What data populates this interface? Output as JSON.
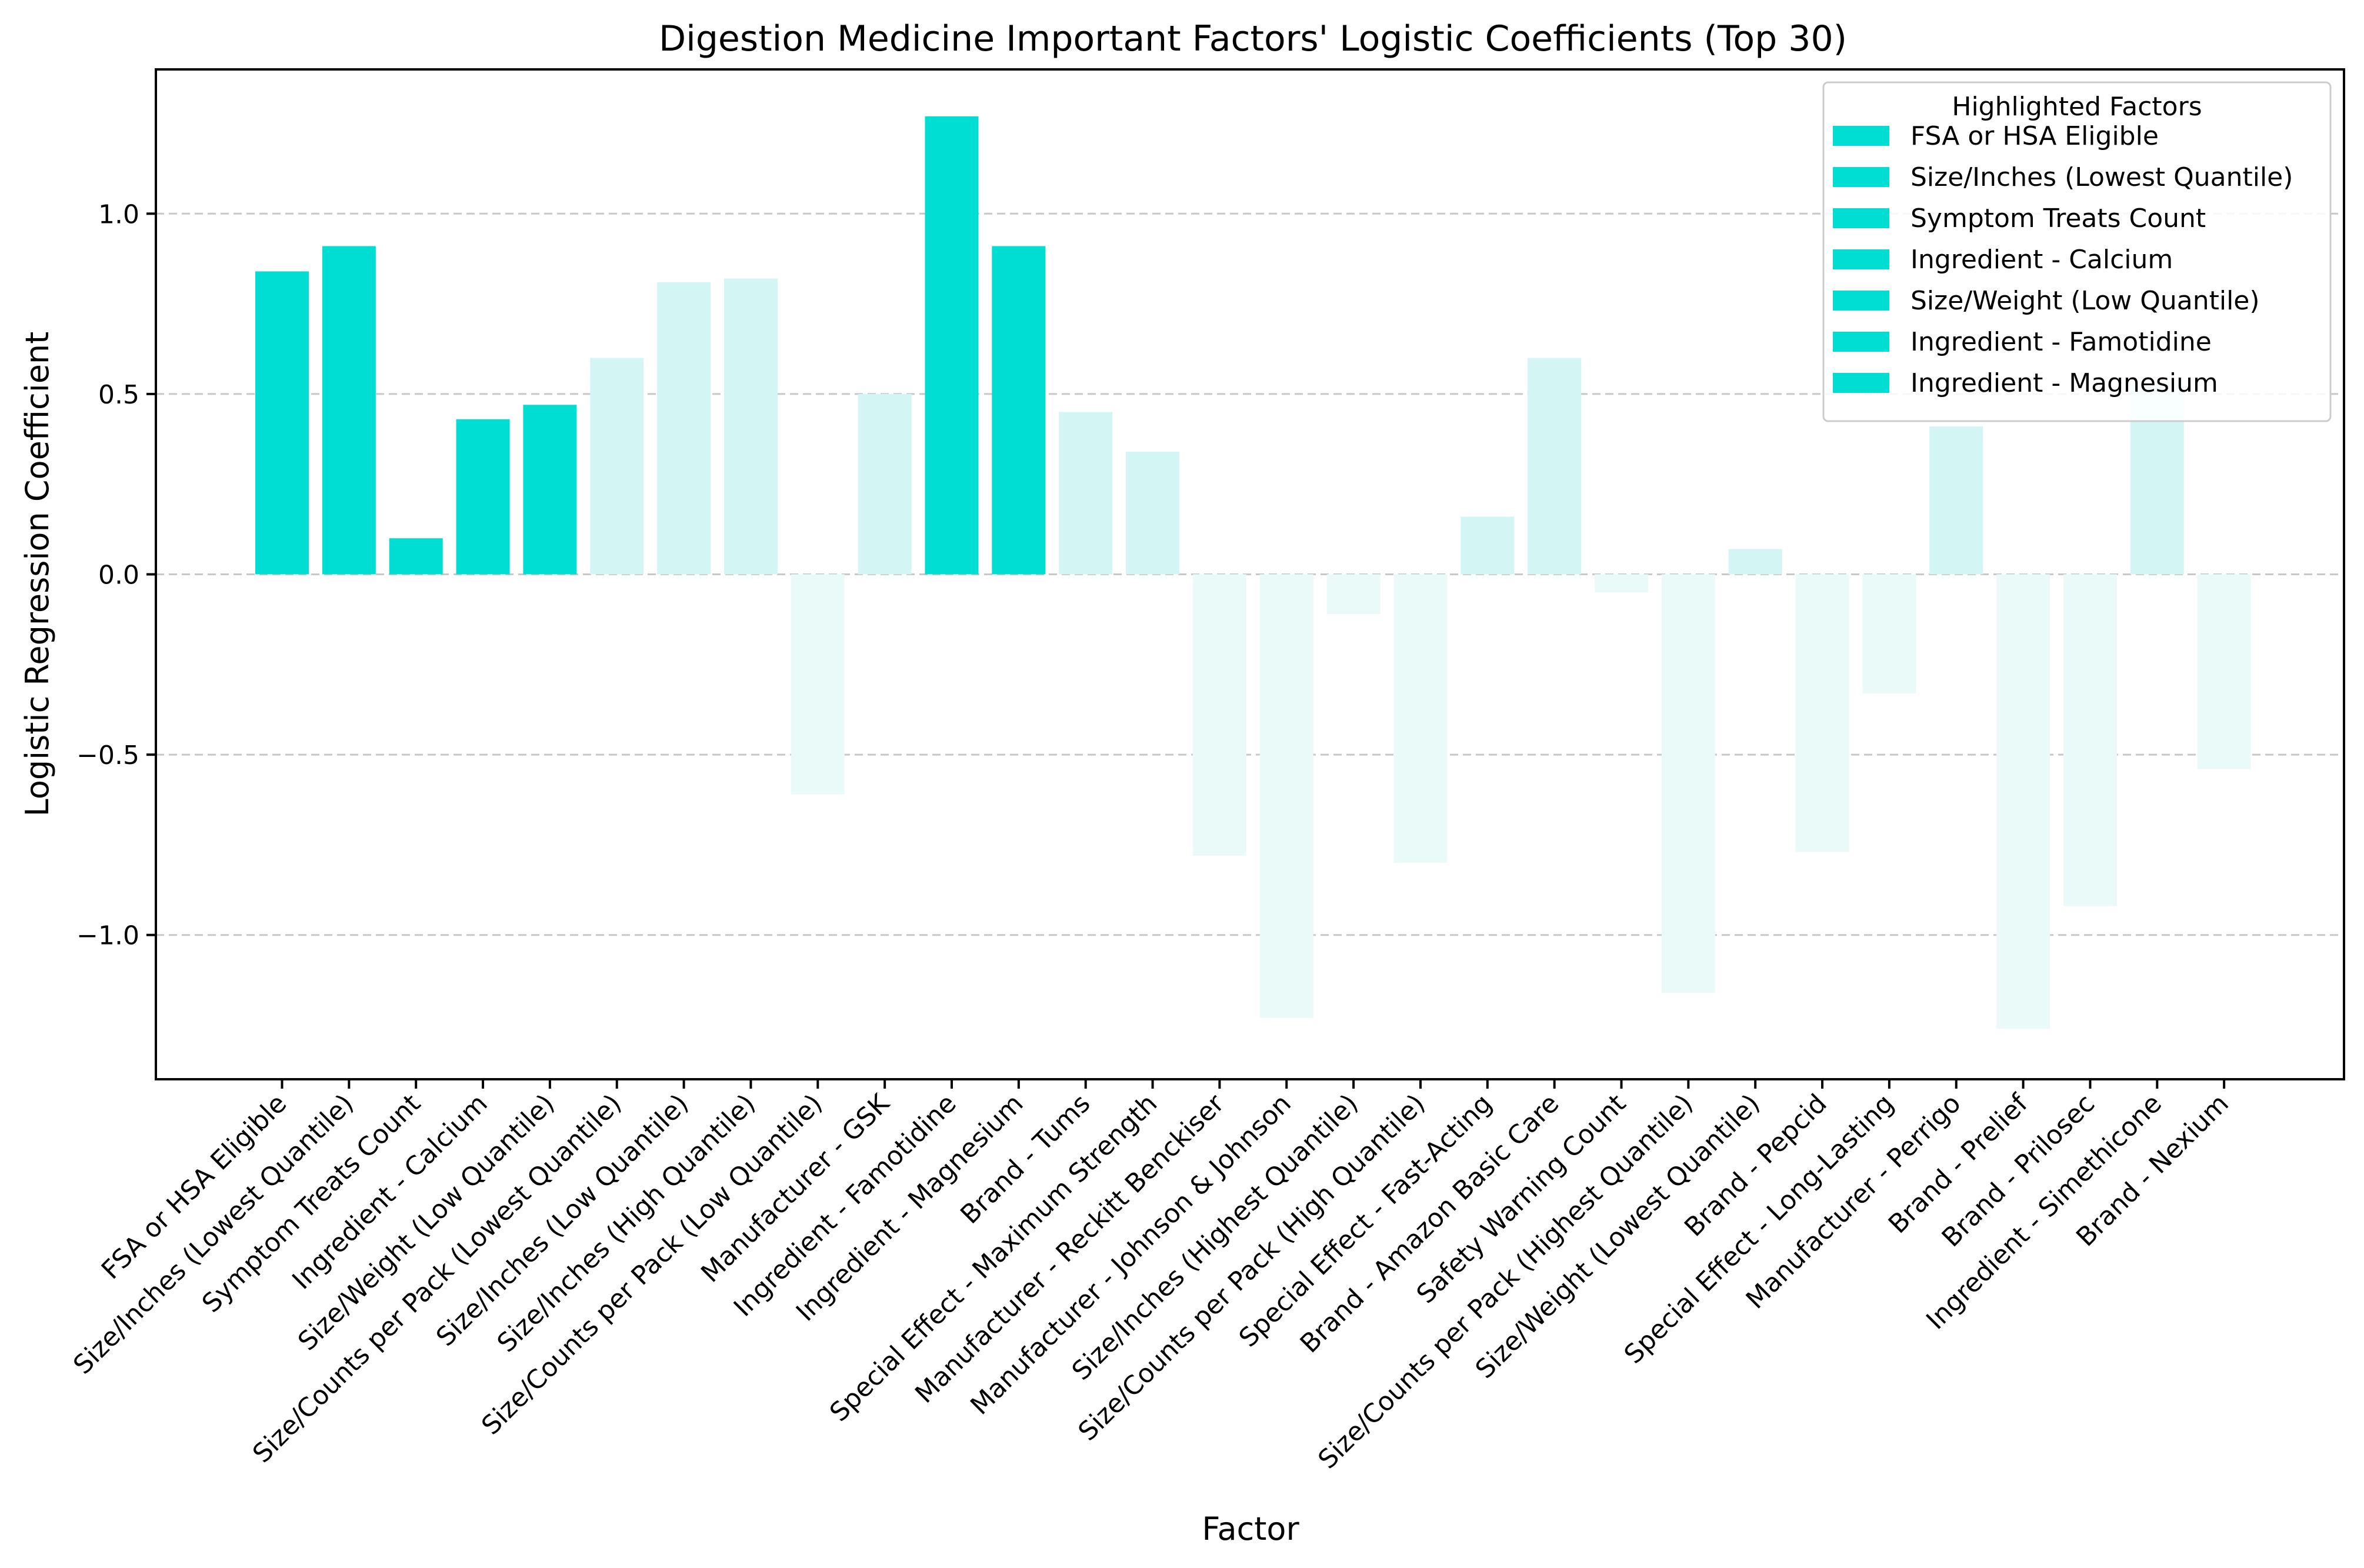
{
  "chart_data": {
    "type": "bar",
    "title": "Digestion Medicine Important Factors' Logistic Coefficients (Top 30)",
    "xlabel": "Factor",
    "ylabel": "Logistic Regression Coefficient",
    "ylim": [
      -1.4,
      1.4
    ],
    "yticks": [
      -1.0,
      -0.5,
      0.0,
      0.5,
      1.0
    ],
    "ytick_labels": [
      "−1.0",
      "−0.5",
      "0.0",
      "0.5",
      "1.0"
    ],
    "grid": "horizontal-dashed",
    "legend_position": "top-right",
    "legend_title": "Highlighted Factors",
    "legend_entries": [
      "FSA or HSA Eligible",
      "Size/Inches (Lowest Quantile)",
      "Symptom Treats Count",
      "Ingredient - Calcium",
      "Size/Weight (Low Quantile)",
      "Ingredient - Famotidine",
      "Ingredient - Magnesium"
    ],
    "colors": {
      "highlighted": "#00DDD3",
      "positive_other": "#D3F5F3",
      "negative_other": "#EAFAF9",
      "grid": "#c8c8c8"
    },
    "categories": [
      "FSA or HSA Eligible",
      "Size/Inches (Lowest Quantile)",
      "Symptom Treats Count",
      "Ingredient - Calcium",
      "Size/Weight (Low Quantile)",
      "Size/Counts per Pack (Lowest Quantile)",
      "Size/Inches (Low Quantile)",
      "Size/Inches (High Quantile)",
      "Size/Counts per Pack (Low Quantile)",
      "Manufacturer - GSK",
      "Ingredient - Famotidine",
      "Ingredient - Magnesium",
      "Brand - Tums",
      "Special Effect - Maximum Strength",
      "Manufacturer - Reckitt Benckiser",
      "Manufacturer - Johnson & Johnson",
      "Size/Inches (Highest Quantile)",
      "Size/Counts per Pack (High Quantile)",
      "Special Effect - Fast-Acting",
      "Brand - Amazon Basic Care",
      "Safety Warning Count",
      "Size/Counts per Pack (Highest Quantile)",
      "Size/Weight (Lowest Quantile)",
      "Brand - Pepcid",
      "Special Effect - Long-Lasting",
      "Manufacturer - Perrigo",
      "Brand - Prelief",
      "Brand - Prilosec",
      "Ingredient - Simethicone",
      "Brand - Nexium"
    ],
    "values": [
      0.84,
      0.91,
      0.1,
      0.43,
      0.47,
      0.6,
      0.81,
      0.82,
      -0.61,
      0.5,
      1.27,
      0.91,
      0.45,
      0.34,
      -0.78,
      -1.23,
      -0.11,
      -0.8,
      0.16,
      0.6,
      -0.05,
      -1.16,
      0.07,
      -0.77,
      -0.33,
      0.41,
      -1.26,
      -0.92,
      0.53,
      -0.54
    ],
    "highlighted": [
      true,
      true,
      true,
      true,
      true,
      false,
      false,
      false,
      false,
      false,
      true,
      true,
      false,
      false,
      false,
      false,
      false,
      false,
      false,
      false,
      false,
      false,
      false,
      false,
      false,
      false,
      false,
      false,
      false,
      false
    ]
  }
}
